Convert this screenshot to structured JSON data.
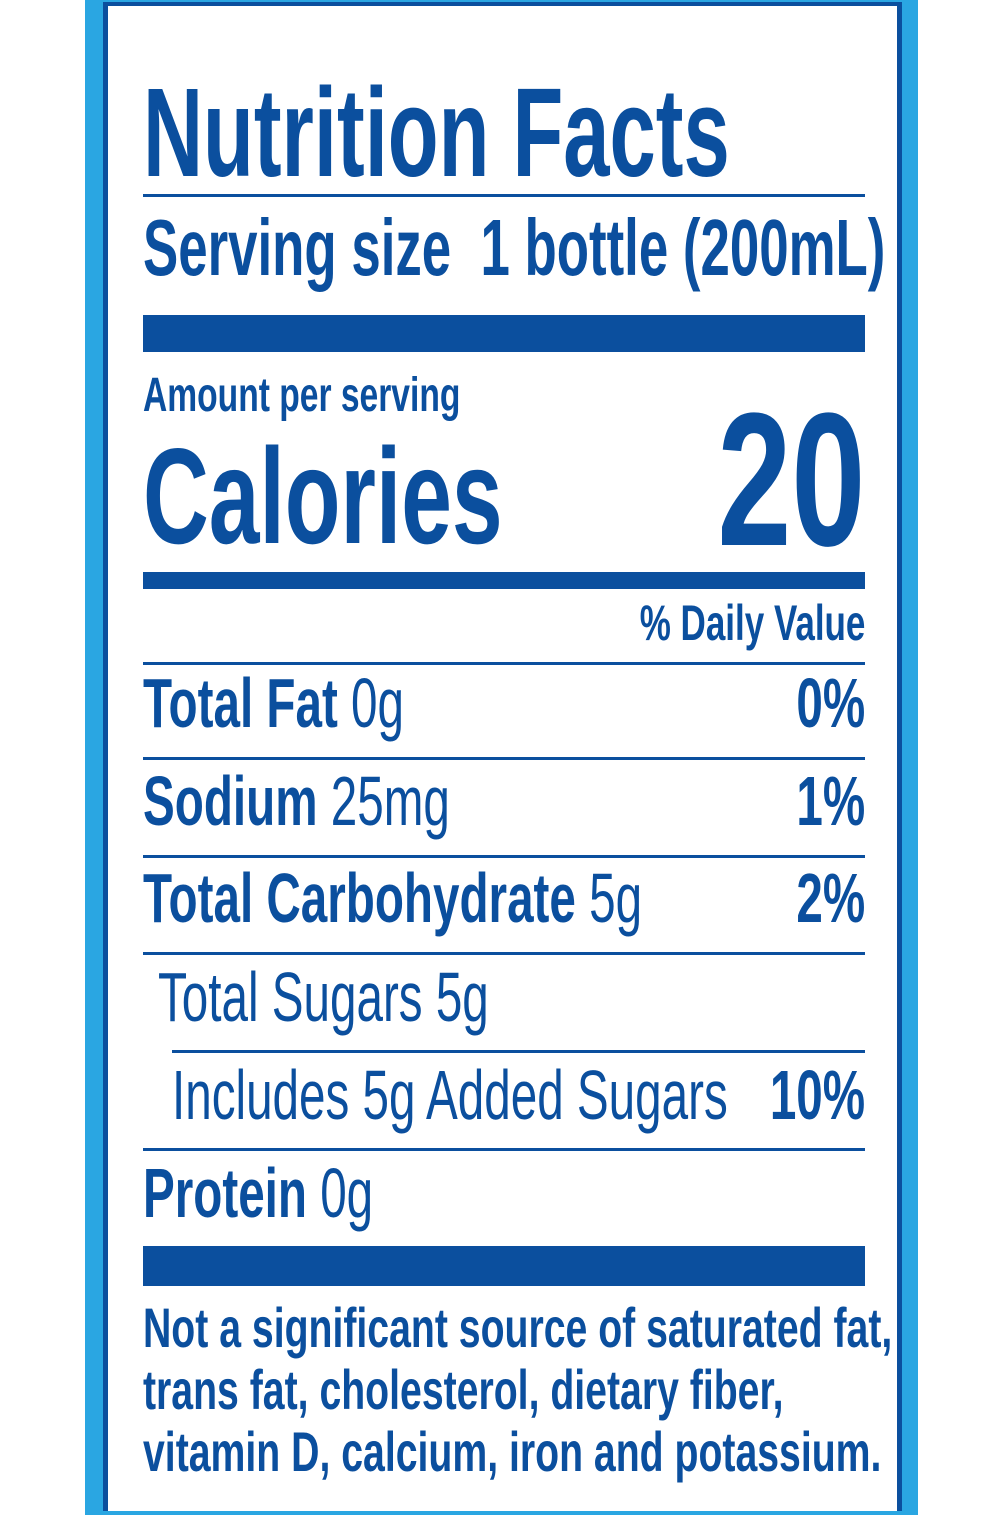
{
  "title": "Nutrition Facts",
  "serving": {
    "label": "Serving size",
    "value": "1 bottle (200mL)"
  },
  "amount_per_serving": "Amount per serving",
  "calories": {
    "label": "Calories",
    "value": 20
  },
  "daily_value_header": "% Daily Value",
  "nutrients": [
    {
      "name": "Total Fat",
      "amount": "0g",
      "dv": "0%"
    },
    {
      "name": "Sodium",
      "amount": "25mg",
      "dv": "1%"
    },
    {
      "name": "Total Carbohydrate",
      "amount": "5g",
      "dv": "2%"
    },
    {
      "name": "Total Sugars",
      "amount": "5g"
    },
    {
      "name": "Includes 5g Added Sugars",
      "dv": "10%"
    },
    {
      "name": "Protein",
      "amount": "0g"
    }
  ],
  "footnote": [
    "Not a significant source of saturated fat,",
    "trans fat, cholesterol, dietary fiber,",
    "vitamin D, calcium, iron and potassium."
  ]
}
